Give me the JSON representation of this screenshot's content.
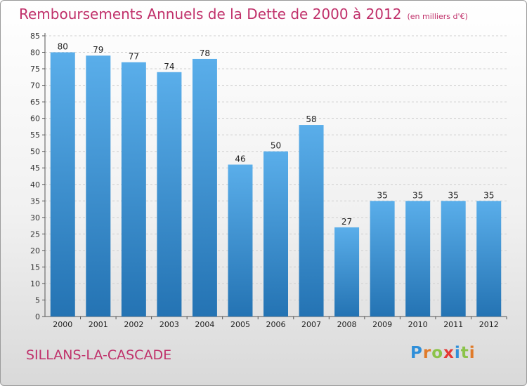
{
  "title": {
    "main": "Remboursements Annuels de la Dette de 2000 à 2012",
    "unit": "(en milliers d'€)"
  },
  "town": "SILLANS-LA-CASCADE",
  "logo": {
    "letters": [
      {
        "char": "P",
        "color": "#2f8fd9"
      },
      {
        "char": "r",
        "color": "#e07b2a"
      },
      {
        "char": "o",
        "color": "#8bc34a"
      },
      {
        "char": "x",
        "color": "#e53935"
      },
      {
        "char": "i",
        "color": "#2f8fd9"
      },
      {
        "char": "t",
        "color": "#8bc34a"
      },
      {
        "char": "i",
        "color": "#e07b2a"
      }
    ]
  },
  "colors": {
    "title": "#c0306a",
    "bar_top": "#5aaeea",
    "bar_bottom": "#2473b3",
    "grid": "#cfcfcf"
  },
  "chart_data": {
    "type": "bar",
    "title": "Remboursements Annuels de la Dette de 2000 à 2012",
    "subtitle": "(en milliers d'€)",
    "xlabel": "",
    "ylabel": "",
    "categories": [
      "2000",
      "2001",
      "2002",
      "2003",
      "2004",
      "2005",
      "2006",
      "2007",
      "2008",
      "2009",
      "2010",
      "2011",
      "2012"
    ],
    "values": [
      80,
      79,
      77,
      74,
      78,
      46,
      50,
      58,
      27,
      35,
      35,
      35,
      35
    ],
    "ylim": [
      0,
      85
    ],
    "ytick_step": 5,
    "grid": "horizontal-dashed",
    "data_labels": true
  }
}
